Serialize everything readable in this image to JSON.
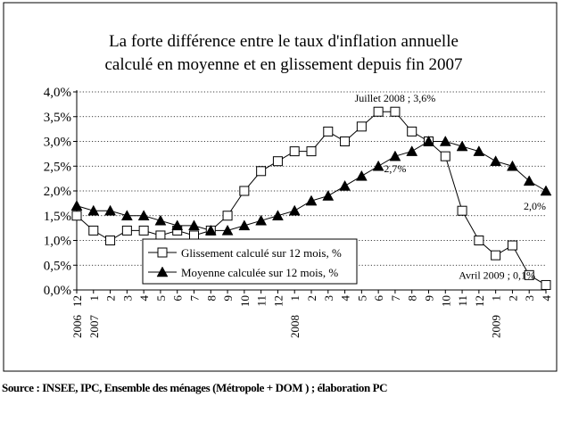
{
  "chart_data": {
    "type": "line",
    "title": [
      "La forte différence entre le taux d'inflation annuelle",
      "calculé en moyenne et en glissement depuis fin 2007"
    ],
    "xlabel": "",
    "ylabel": "",
    "x": [
      "2006 12",
      "2007 1",
      "2",
      "3",
      "4",
      "5",
      "6",
      "7",
      "8",
      "9",
      "10",
      "11",
      "12",
      "2008 1",
      "2",
      "3",
      "4",
      "5",
      "6",
      "7",
      "8",
      "9",
      "10",
      "11",
      "12",
      "2009 1",
      "2",
      "3",
      "4"
    ],
    "x_ticks": [
      {
        "main": "12",
        "year": "2006"
      },
      {
        "main": "1",
        "year": "2007"
      },
      {
        "main": "2",
        "year": ""
      },
      {
        "main": "3",
        "year": ""
      },
      {
        "main": "4",
        "year": ""
      },
      {
        "main": "5",
        "year": ""
      },
      {
        "main": "6",
        "year": ""
      },
      {
        "main": "7",
        "year": ""
      },
      {
        "main": "8",
        "year": ""
      },
      {
        "main": "9",
        "year": ""
      },
      {
        "main": "10",
        "year": ""
      },
      {
        "main": "11",
        "year": ""
      },
      {
        "main": "12",
        "year": ""
      },
      {
        "main": "1",
        "year": "2008"
      },
      {
        "main": "2",
        "year": ""
      },
      {
        "main": "3",
        "year": ""
      },
      {
        "main": "4",
        "year": ""
      },
      {
        "main": "5",
        "year": ""
      },
      {
        "main": "6",
        "year": ""
      },
      {
        "main": "7",
        "year": ""
      },
      {
        "main": "8",
        "year": ""
      },
      {
        "main": "9",
        "year": ""
      },
      {
        "main": "10",
        "year": ""
      },
      {
        "main": "11",
        "year": ""
      },
      {
        "main": "12",
        "year": ""
      },
      {
        "main": "1",
        "year": "2009"
      },
      {
        "main": "2",
        "year": ""
      },
      {
        "main": "3",
        "year": ""
      },
      {
        "main": "4",
        "year": ""
      }
    ],
    "y_ticks": [
      "0,0%",
      "0,5%",
      "1,0%",
      "1,5%",
      "2,0%",
      "2,5%",
      "3,0%",
      "3,5%",
      "4,0%"
    ],
    "ylim": [
      0,
      4
    ],
    "grid": "horizontal dotted",
    "legend_position": "bottom-left",
    "series": [
      {
        "name": "Glissement calculé sur 12 mois, %",
        "marker": "square-open",
        "values": [
          1.5,
          1.2,
          1.0,
          1.2,
          1.2,
          1.1,
          1.2,
          1.1,
          1.2,
          1.5,
          2.0,
          2.4,
          2.6,
          2.8,
          2.8,
          3.2,
          3.0,
          3.3,
          3.6,
          3.6,
          3.2,
          3.0,
          2.7,
          1.6,
          1.0,
          0.7,
          0.9,
          0.3,
          0.1
        ]
      },
      {
        "name": "Moyenne calculée sur 12 mois, %",
        "marker": "triangle-filled",
        "values": [
          1.7,
          1.6,
          1.6,
          1.5,
          1.5,
          1.4,
          1.3,
          1.3,
          1.2,
          1.2,
          1.3,
          1.4,
          1.5,
          1.6,
          1.8,
          1.9,
          2.1,
          2.3,
          2.5,
          2.7,
          2.8,
          3.0,
          3.0,
          2.9,
          2.8,
          2.6,
          2.5,
          2.2,
          2.0
        ]
      }
    ],
    "annotations": [
      {
        "text": "Juillet 2008 ; 3,6%",
        "series": 0,
        "index": 19
      },
      {
        "text": "2,7%",
        "series": 1,
        "index": 19
      },
      {
        "text": "2,0%",
        "series": 1,
        "index": 28
      },
      {
        "text": "Avril 2009 ; 0,1%",
        "series": 0,
        "index": 28
      }
    ]
  },
  "source": "Source : INSEE, IPC, Ensemble des ménages (Métropole + DOM ) ;  élaboration PC"
}
